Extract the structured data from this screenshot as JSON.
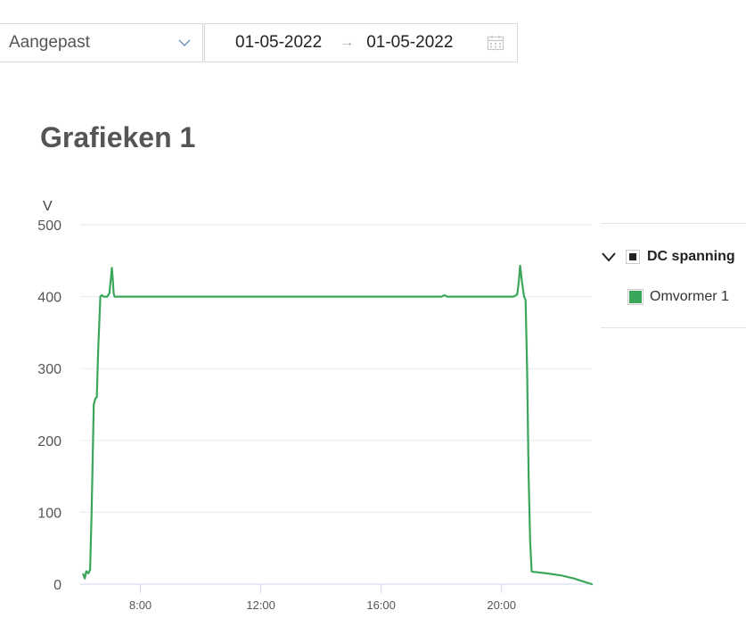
{
  "toolbar": {
    "range_select_value": "Aangepast",
    "date_from": "01-05-2022",
    "date_to": "01-05-2022",
    "arrow": "→"
  },
  "page_title": "Grafieken 1",
  "legend": {
    "group_label": "DC spanning",
    "items": [
      {
        "label": "Omvormer 1",
        "color": "#3aa65a"
      }
    ]
  },
  "chart_data": {
    "type": "line",
    "title": "",
    "ylabel": "V",
    "xlabel": "",
    "x_unit": "hour of day",
    "ylim": [
      0,
      500
    ],
    "xlim": [
      6.0,
      23.0
    ],
    "yticks": [
      0,
      100,
      200,
      300,
      400,
      500
    ],
    "ytick_labels": [
      "0",
      "100",
      "200",
      "300",
      "400",
      "500"
    ],
    "xticks": [
      8,
      12,
      16,
      20
    ],
    "xtick_labels": [
      "8:00",
      "12:00",
      "16:00",
      "20:00"
    ],
    "grid": true,
    "legend_position": "right",
    "series": [
      {
        "name": "Omvormer 1",
        "color": "#3aa65a",
        "x": [
          6.1,
          6.15,
          6.2,
          6.27,
          6.33,
          6.38,
          6.45,
          6.5,
          6.55,
          6.6,
          6.67,
          6.72,
          6.78,
          6.83,
          6.9,
          6.97,
          7.02,
          7.05,
          7.08,
          7.11,
          7.14,
          7.2,
          7.5,
          8.0,
          9.0,
          10.0,
          11.0,
          12.0,
          13.0,
          14.0,
          15.0,
          16.0,
          17.0,
          18.0,
          18.1,
          18.2,
          19.0,
          20.0,
          20.4,
          20.52,
          20.57,
          20.62,
          20.68,
          20.75,
          20.8,
          20.85,
          20.9,
          20.95,
          21.0,
          21.05,
          21.1,
          21.5,
          22.0,
          22.4,
          22.7,
          23.0
        ],
        "y": [
          14,
          8,
          18,
          15,
          20,
          100,
          250,
          258,
          260,
          330,
          400,
          402,
          400,
          400,
          400,
          405,
          425,
          440,
          425,
          405,
          400,
          400,
          400,
          400,
          400,
          400,
          400,
          400,
          400,
          400,
          400,
          400,
          400,
          400,
          402,
          400,
          400,
          400,
          400,
          403,
          420,
          443,
          420,
          400,
          395,
          300,
          150,
          60,
          18,
          17,
          17,
          15,
          12,
          8,
          4,
          0
        ]
      }
    ]
  }
}
